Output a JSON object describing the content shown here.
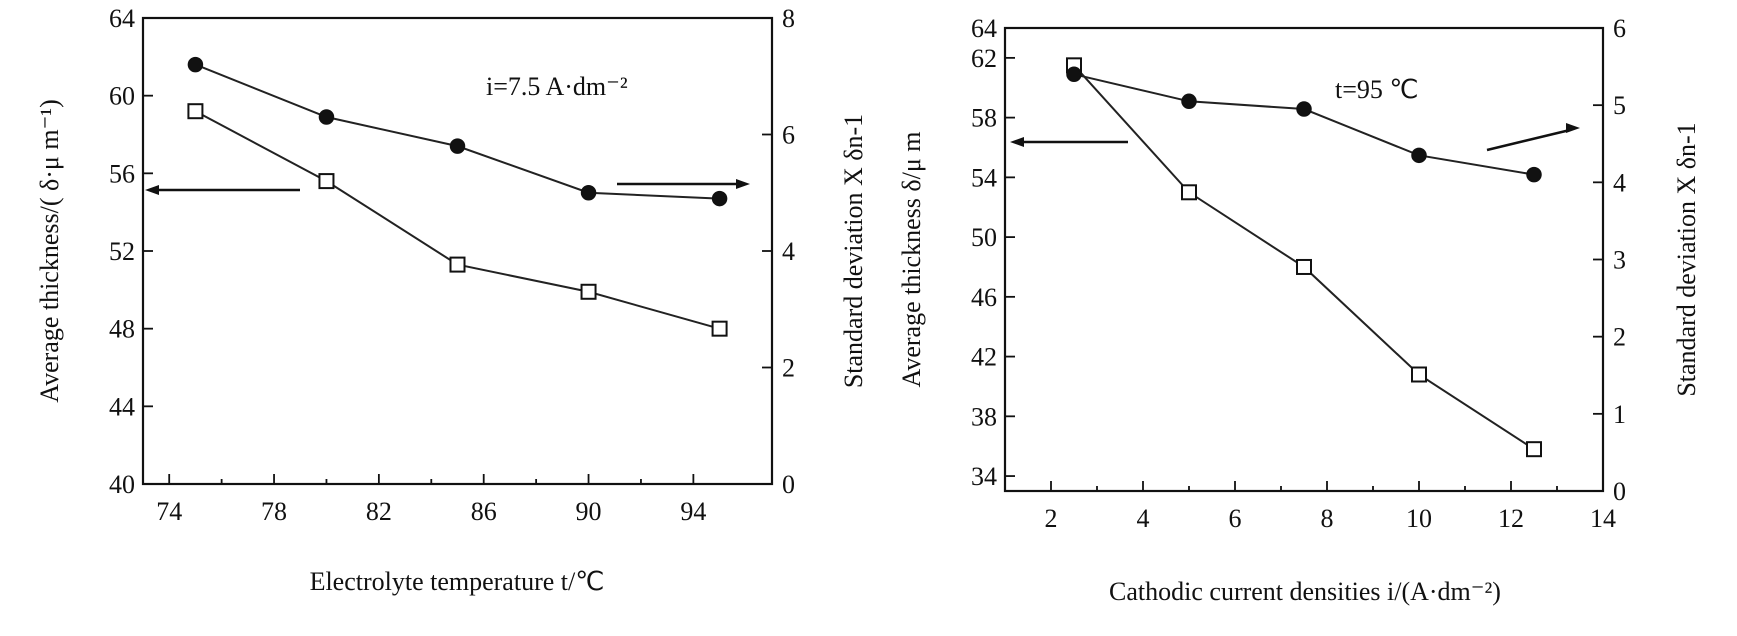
{
  "chart_data": [
    {
      "type": "line",
      "x": [
        75,
        80,
        85,
        90,
        95
      ],
      "xlabel": "Electrolyte temperature t/℃",
      "xlim": [
        73,
        97
      ],
      "xticks": [
        74,
        78,
        82,
        86,
        90,
        94
      ],
      "ylabel_left": "Average thickness/( δ·μ m⁻¹)",
      "ylim_left": [
        40,
        64
      ],
      "yticks_left": [
        40,
        44,
        48,
        52,
        56,
        60,
        64
      ],
      "ylabel_right": "Standard deviation X δn-1",
      "ylim_right": [
        0,
        8
      ],
      "yticks_right": [
        0,
        2,
        4,
        6,
        8
      ],
      "annotation": "i=7.5 A·dm⁻²",
      "series": [
        {
          "name": "Average thickness",
          "axis": "left",
          "marker": "open-square",
          "values": [
            59.2,
            55.6,
            51.3,
            49.9,
            48.0
          ]
        },
        {
          "name": "Standard deviation",
          "axis": "right",
          "marker": "filled-circle",
          "values": [
            7.2,
            6.3,
            5.8,
            5.0,
            4.9
          ]
        }
      ],
      "arrows": [
        {
          "direction": "left",
          "points_to": "left-axis"
        },
        {
          "direction": "right",
          "points_to": "right-axis"
        }
      ]
    },
    {
      "type": "line",
      "x": [
        2.5,
        5,
        7.5,
        10,
        12.5
      ],
      "xlabel": "Cathodic current densities i/(A·dm⁻²)",
      "xlim": [
        1,
        14
      ],
      "xticks": [
        2,
        4,
        6,
        8,
        10,
        12,
        14
      ],
      "ylabel_left": "Average thickness δ/μ m",
      "ylim_left": [
        33,
        64
      ],
      "yticks_left": [
        34,
        38,
        42,
        46,
        50,
        54,
        58,
        62,
        64
      ],
      "ylabel_right": "Standard deviation X δn-1",
      "ylim_right": [
        0,
        6
      ],
      "yticks_right": [
        0,
        1,
        2,
        3,
        4,
        5,
        6
      ],
      "annotation": "t=95 ℃",
      "series": [
        {
          "name": "Average thickness",
          "axis": "left",
          "marker": "open-square",
          "values": [
            61.5,
            53.0,
            48.0,
            40.8,
            35.8
          ]
        },
        {
          "name": "Standard deviation",
          "axis": "right",
          "marker": "filled-circle",
          "values": [
            5.4,
            5.05,
            4.95,
            4.35,
            4.1
          ]
        }
      ],
      "arrows": [
        {
          "direction": "left",
          "points_to": "left-axis"
        },
        {
          "direction": "right",
          "points_to": "right-axis"
        }
      ]
    }
  ]
}
